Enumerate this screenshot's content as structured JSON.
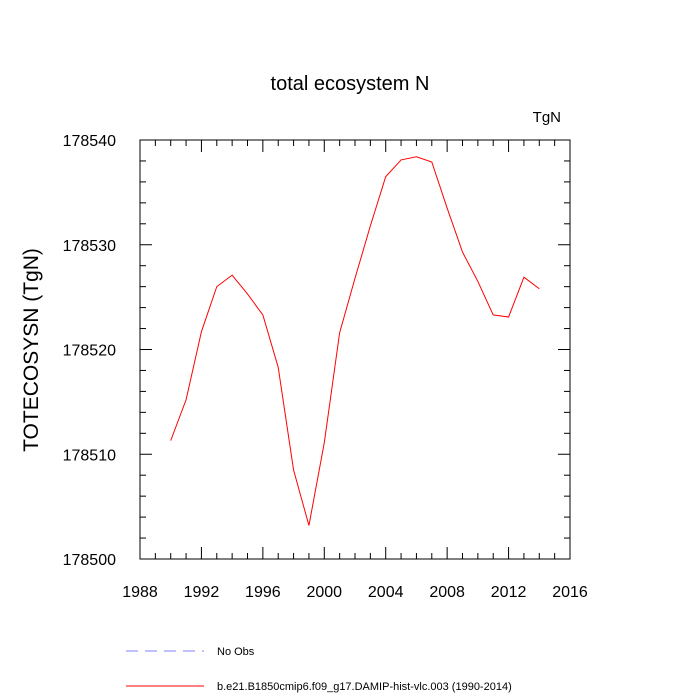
{
  "chart_data": {
    "type": "line",
    "title": "total ecosystem N",
    "units_label": "TgN",
    "xlabel": "",
    "ylabel": "TOTECOSYSN  (TgN)",
    "xlim": [
      1988,
      2016
    ],
    "ylim": [
      178500,
      178540
    ],
    "x_ticks": [
      "1988",
      "1992",
      "1996",
      "2000",
      "2004",
      "2008",
      "2012",
      "2016"
    ],
    "y_ticks": [
      "178500",
      "178510",
      "178520",
      "178530",
      "178540"
    ],
    "grid": false,
    "legend_position": "bottom-left",
    "series": [
      {
        "name": "No Obs",
        "color": "#8080ff",
        "dash": "dashed",
        "x": [],
        "y": []
      },
      {
        "name": "b.e21.B1850cmip6.f09_g17.DAMIP-hist-vlc.003 (1990-2014)",
        "color": "#ff0000",
        "dash": "solid",
        "x": [
          1990,
          1991,
          1992,
          1993,
          1994,
          1995,
          1996,
          1997,
          1998,
          1999,
          2000,
          2001,
          2002,
          2003,
          2004,
          2005,
          2006,
          2007,
          2008,
          2009,
          2010,
          2011,
          2012,
          2013,
          2014
        ],
        "y": [
          178511.3,
          178515.2,
          178521.7,
          178526.0,
          178527.1,
          178525.3,
          178523.3,
          178518.3,
          178508.5,
          178503.2,
          178511.1,
          178521.6,
          178526.8,
          178531.8,
          178536.5,
          178538.1,
          178538.4,
          178537.9,
          178533.5,
          178529.3,
          178526.5,
          178523.3,
          178523.1,
          178526.9,
          178525.8
        ]
      }
    ]
  }
}
